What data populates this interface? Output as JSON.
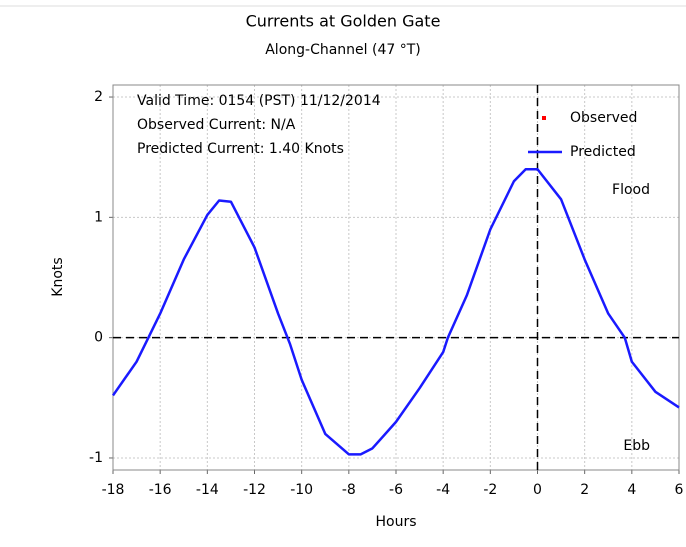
{
  "chart_data": {
    "type": "line",
    "title": "Currents at Golden Gate",
    "subtitle": "Along-Channel (47 °T)",
    "x_label": "Hours",
    "y_label": "Knots",
    "annotations": [
      "Valid Time: 0154 (PST) 11/12/2014",
      "Observed Current: N/A",
      "Predicted Current:  1.40 Knots"
    ],
    "region_labels": {
      "upper": "Flood",
      "lower": "Ebb"
    },
    "x": [
      -18,
      -17,
      -16.5,
      -16,
      -15,
      -14,
      -13.5,
      -13,
      -12,
      -11,
      -10.5,
      -10,
      -9,
      -8,
      -7.5,
      -7,
      -6,
      -5,
      -4,
      -3.8,
      -3,
      -2,
      -1,
      -0.5,
      0,
      1,
      2,
      3,
      3.7,
      4,
      5,
      6
    ],
    "series": [
      {
        "name": "Observed",
        "color": "#ff0000",
        "values": [
          null,
          null,
          null,
          null,
          null,
          null,
          null,
          null,
          null,
          null,
          null,
          null,
          null,
          null,
          null,
          null,
          null,
          null,
          null,
          null,
          null,
          null,
          null,
          null,
          null,
          null,
          null,
          null,
          null,
          null,
          null,
          null
        ]
      },
      {
        "name": "Predicted",
        "color": "#1a1aff",
        "values": [
          -0.48,
          -0.2,
          0,
          0.2,
          0.65,
          1.02,
          1.14,
          1.13,
          0.75,
          0.2,
          -0.05,
          -0.35,
          -0.8,
          -0.97,
          -0.97,
          -0.92,
          -0.7,
          -0.42,
          -0.12,
          0,
          0.35,
          0.9,
          1.3,
          1.4,
          1.4,
          1.15,
          0.65,
          0.2,
          0,
          -0.2,
          -0.45,
          -0.58
        ]
      }
    ],
    "xlim": [
      -18,
      6
    ],
    "ylim": [
      -1.1,
      2.1
    ],
    "xticks": [
      -18,
      -16,
      -14,
      -12,
      -10,
      -8,
      -6,
      -4,
      -2,
      0,
      2,
      4,
      6
    ],
    "yticks": [
      -1,
      0,
      1,
      2
    ],
    "grid": true,
    "hlines": [
      0
    ],
    "vlines": [
      0
    ],
    "legend": "upper right"
  }
}
